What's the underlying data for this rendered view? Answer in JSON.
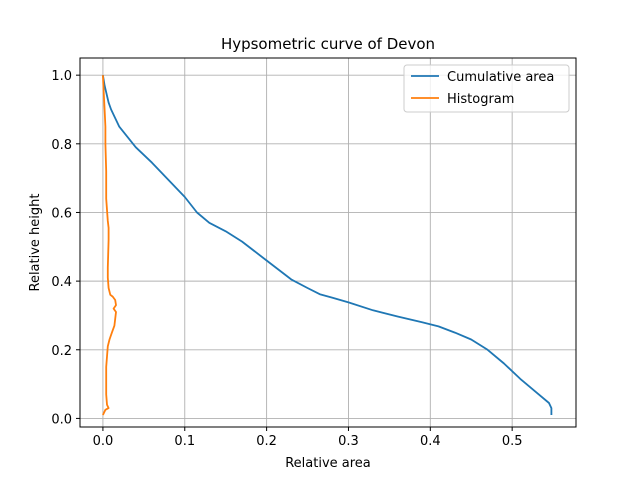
{
  "chart_data": {
    "type": "line",
    "title": "Hypsometric curve of Devon",
    "xlabel": "Relative area",
    "ylabel": "Relative height",
    "xlim": [
      -0.028,
      0.578
    ],
    "ylim": [
      -0.025,
      1.05
    ],
    "xticks": [
      0.0,
      0.1,
      0.2,
      0.3,
      0.4,
      0.5
    ],
    "xtick_labels": [
      "0.0",
      "0.1",
      "0.2",
      "0.3",
      "0.4",
      "0.5"
    ],
    "yticks": [
      0.0,
      0.2,
      0.4,
      0.6,
      0.8,
      1.0
    ],
    "ytick_labels": [
      "0.0",
      "0.2",
      "0.4",
      "0.6",
      "0.8",
      "1.0"
    ],
    "grid": true,
    "legend_placement": "top-right",
    "series": [
      {
        "name": "Cumulative area",
        "color": "#1f77b4",
        "x": [
          0.0,
          0.002,
          0.004,
          0.007,
          0.01,
          0.015,
          0.02,
          0.03,
          0.04,
          0.06,
          0.08,
          0.1,
          0.115,
          0.13,
          0.15,
          0.17,
          0.2,
          0.23,
          0.25,
          0.265,
          0.28,
          0.3,
          0.33,
          0.36,
          0.39,
          0.41,
          0.43,
          0.45,
          0.47,
          0.49,
          0.51,
          0.53,
          0.545,
          0.548,
          0.548
        ],
        "y": [
          1.0,
          0.97,
          0.95,
          0.92,
          0.9,
          0.875,
          0.85,
          0.82,
          0.79,
          0.745,
          0.695,
          0.645,
          0.6,
          0.57,
          0.545,
          0.515,
          0.46,
          0.405,
          0.38,
          0.362,
          0.352,
          0.338,
          0.315,
          0.297,
          0.28,
          0.268,
          0.25,
          0.23,
          0.2,
          0.16,
          0.115,
          0.075,
          0.045,
          0.03,
          0.01
        ]
      },
      {
        "name": "Histogram",
        "color": "#ff7f0e",
        "x": [
          0.0,
          0.001,
          0.002,
          0.003,
          0.003,
          0.004,
          0.004,
          0.006,
          0.007,
          0.007,
          0.006,
          0.006,
          0.007,
          0.009,
          0.012,
          0.015,
          0.016,
          0.013,
          0.016,
          0.015,
          0.014,
          0.011,
          0.008,
          0.006,
          0.005,
          0.004,
          0.004,
          0.004,
          0.005,
          0.007,
          0.003,
          0.001,
          0.0
        ],
        "y": [
          1.0,
          0.95,
          0.9,
          0.85,
          0.8,
          0.72,
          0.64,
          0.575,
          0.555,
          0.52,
          0.44,
          0.41,
          0.38,
          0.36,
          0.355,
          0.345,
          0.33,
          0.32,
          0.31,
          0.29,
          0.27,
          0.25,
          0.23,
          0.21,
          0.18,
          0.15,
          0.1,
          0.07,
          0.04,
          0.03,
          0.025,
          0.015,
          0.01
        ]
      }
    ]
  }
}
